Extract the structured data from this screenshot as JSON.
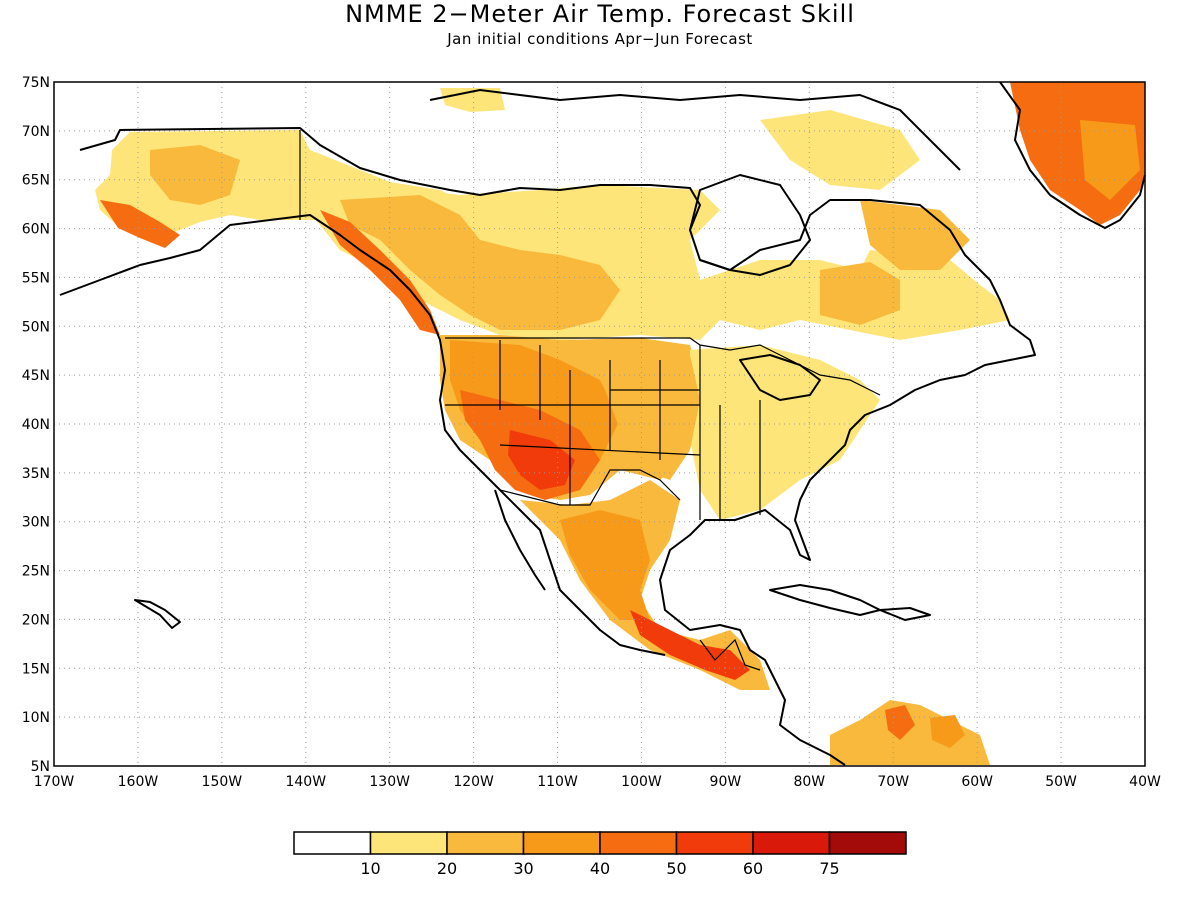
{
  "title": "NMME 2−Meter Air Temp. Forecast Skill",
  "subtitle": "Jan initial conditions  Apr−Jun Forecast",
  "map": {
    "lon_range": [
      -170,
      -40
    ],
    "lat_range": [
      5,
      75
    ],
    "lat_ticks": [
      "75N",
      "70N",
      "65N",
      "60N",
      "55N",
      "50N",
      "45N",
      "40N",
      "35N",
      "30N",
      "25N",
      "20N",
      "15N",
      "10N",
      "5N"
    ],
    "lon_ticks": [
      "170W",
      "160W",
      "150W",
      "140W",
      "130W",
      "120W",
      "110W",
      "100W",
      "90W",
      "80W",
      "70W",
      "60W",
      "50W",
      "40W"
    ],
    "gridlines": "dotted"
  },
  "legend": {
    "labels": [
      "10",
      "20",
      "30",
      "40",
      "50",
      "60",
      "75"
    ],
    "colors": [
      "#ffffff",
      "#fde57a",
      "#f8b93c",
      "#f79a1a",
      "#f56d10",
      "#f23b0a",
      "#d91a0a",
      "#a30a0a"
    ]
  }
}
